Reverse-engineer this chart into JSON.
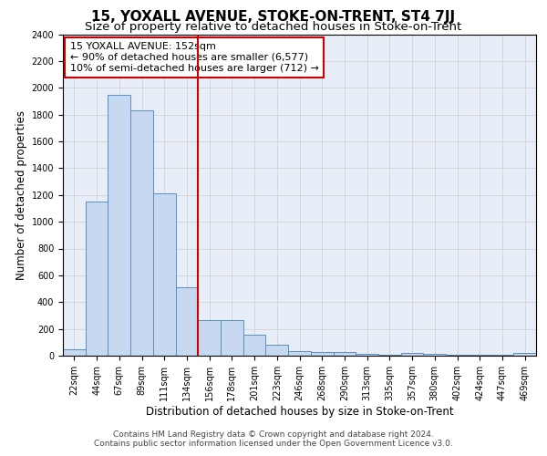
{
  "title": "15, YOXALL AVENUE, STOKE-ON-TRENT, ST4 7JJ",
  "subtitle": "Size of property relative to detached houses in Stoke-on-Trent",
  "xlabel": "Distribution of detached houses by size in Stoke-on-Trent",
  "ylabel": "Number of detached properties",
  "categories": [
    "22sqm",
    "44sqm",
    "67sqm",
    "89sqm",
    "111sqm",
    "134sqm",
    "156sqm",
    "178sqm",
    "201sqm",
    "223sqm",
    "246sqm",
    "268sqm",
    "290sqm",
    "313sqm",
    "335sqm",
    "357sqm",
    "380sqm",
    "402sqm",
    "424sqm",
    "447sqm",
    "469sqm"
  ],
  "values": [
    50,
    1150,
    1950,
    1830,
    1210,
    510,
    265,
    265,
    155,
    80,
    35,
    30,
    25,
    15,
    10,
    20,
    15,
    10,
    5,
    5,
    20
  ],
  "bar_color": "#c6d9f0",
  "bar_edge_color": "#5a8fc3",
  "vline_x_index": 6,
  "vline_color": "#cc0000",
  "annotation_text": "15 YOXALL AVENUE: 152sqm\n← 90% of detached houses are smaller (6,577)\n10% of semi-detached houses are larger (712) →",
  "annotation_box_color": "#ffffff",
  "annotation_box_edge": "#cc0000",
  "ylim": [
    0,
    2400
  ],
  "yticks": [
    0,
    200,
    400,
    600,
    800,
    1000,
    1200,
    1400,
    1600,
    1800,
    2000,
    2200,
    2400
  ],
  "grid_color": "#cccccc",
  "bg_color": "#e8eef7",
  "footer1": "Contains HM Land Registry data © Crown copyright and database right 2024.",
  "footer2": "Contains public sector information licensed under the Open Government Licence v3.0.",
  "title_fontsize": 11,
  "subtitle_fontsize": 9.5,
  "axis_label_fontsize": 8.5,
  "tick_fontsize": 7,
  "annotation_fontsize": 8,
  "footer_fontsize": 6.5
}
